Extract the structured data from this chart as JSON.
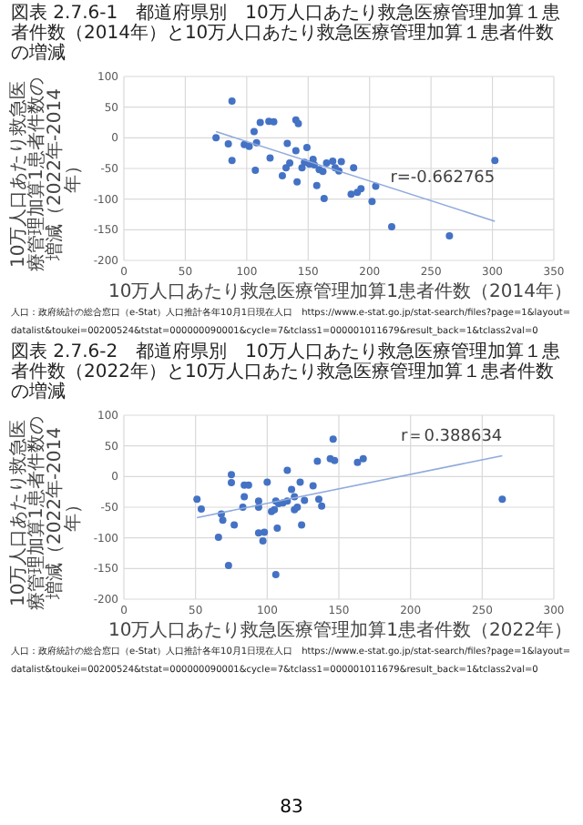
{
  "chart_data": [
    {
      "type": "scatter",
      "title": "図表 2.7.6-1　都道府県別　10万人口あたり救急医療管理加算１患者件数（2014年）と10万人口あたり救急医療管理加算１患者件数の増減",
      "xlabel": "10万人口あたり救急医療管理加算1患者件数（2014年）",
      "ylabel": "10万人口あたり救急医療管理加算1患者件数の増減（2022年-2014年）",
      "xlim": [
        0,
        350
      ],
      "xticks": [
        0,
        50,
        100,
        150,
        200,
        250,
        300,
        350
      ],
      "ylim": [
        -200,
        100
      ],
      "yticks": [
        -200,
        -150,
        -100,
        -50,
        0,
        50,
        100
      ],
      "grid": true,
      "marker": "circle",
      "series": [
        {
          "type": "scatter",
          "color": "#4472c4",
          "x": [
            75,
            88,
            85,
            88,
            98,
            102,
            106,
            108,
            107,
            111,
            118,
            122,
            119,
            133,
            129,
            132,
            135,
            140,
            141,
            140,
            142,
            145,
            147,
            149,
            151,
            154,
            155,
            157,
            159,
            162,
            163,
            165,
            170,
            172,
            175,
            177,
            187,
            185,
            190,
            193,
            202,
            205,
            218,
            265,
            302
          ],
          "values": [
            0,
            60,
            -10,
            -37,
            -11,
            -14,
            10,
            -8,
            -53,
            25,
            27,
            26,
            -33,
            -9,
            -62,
            -49,
            -41,
            -21,
            -72,
            29,
            23,
            -49,
            -40,
            -16,
            -43,
            -35,
            -44,
            -78,
            -52,
            -55,
            -99,
            -41,
            -38,
            -49,
            -54,
            -39,
            -49,
            -92,
            -89,
            -83,
            -104,
            -79,
            -145,
            -160,
            -37
          ]
        },
        {
          "type": "line",
          "color": "#8faadc",
          "marker": "none",
          "x": [
            75,
            302
          ],
          "values": [
            10,
            -136
          ]
        }
      ],
      "annotations": [
        "r=-0.662765",
        "人口：政府統計の総合窓口（e-Stat）人口推計各年10月1日現在人口　https://www.e-stat.go.jp/stat-search/files?page=1&layout=datalist&toukei=00200524&tstat=000000090001&cycle=7&tclass1=000001011679&result_back=1&tclass2val=0"
      ]
    },
    {
      "type": "scatter",
      "title": "図表 2.7.6-2　都道府県別　10万人口あたり救急医療管理加算１患者件数（2022年）と10万人口あたり救急医療管理加算１患者件数の増減",
      "xlabel": "10万人口あたり救急医療管理加算1患者件数（2022年）",
      "ylabel": "10万人口あたり救急医療管理加算1患者件数の増減（2022年-2014年）",
      "xlim": [
        0,
        300
      ],
      "xticks": [
        0,
        50,
        100,
        150,
        200,
        250,
        300
      ],
      "ylim": [
        -200,
        100
      ],
      "yticks": [
        -200,
        -150,
        -100,
        -50,
        0,
        50,
        100
      ],
      "grid": true,
      "marker": "circle",
      "series": [
        {
          "type": "scatter",
          "color": "#4472c4",
          "x": [
            51,
            54,
            68,
            69,
            75,
            75,
            77,
            66,
            73,
            84,
            87,
            84,
            83,
            94,
            94,
            94,
            97,
            98,
            100,
            103,
            105,
            106,
            107,
            106,
            108,
            111,
            114,
            114,
            117,
            119,
            119,
            121,
            123,
            124,
            126,
            132,
            135,
            136,
            138,
            144,
            146,
            147,
            163,
            167,
            264
          ],
          "values": [
            -37,
            -53,
            -61,
            -71,
            3,
            -10,
            -79,
            -99,
            -145,
            -14,
            -14,
            -33,
            -50,
            -40,
            -50,
            -92,
            -105,
            -91,
            -9,
            -57,
            -54,
            -40,
            -84,
            -160,
            -44,
            -43,
            -40,
            10,
            -21,
            -33,
            -54,
            -50,
            -9,
            -79,
            -39,
            -15,
            25,
            -37,
            -48,
            29,
            61,
            26,
            23,
            29,
            -37
          ]
        },
        {
          "type": "line",
          "color": "#8faadc",
          "marker": "none",
          "x": [
            51,
            264
          ],
          "values": [
            -67,
            34
          ]
        }
      ],
      "annotations": [
        "r＝0.388634",
        "人口：政府統計の総合窓口（e-Stat）人口推計各年10月1日現在人口　https://www.e-stat.go.jp/stat-search/files?page=1&layout=datalist&toukei=00200524&tstat=000000090001&cycle=7&tclass1=000001011679&result_back=1&tclass2val=0",
        "83"
      ]
    }
  ]
}
